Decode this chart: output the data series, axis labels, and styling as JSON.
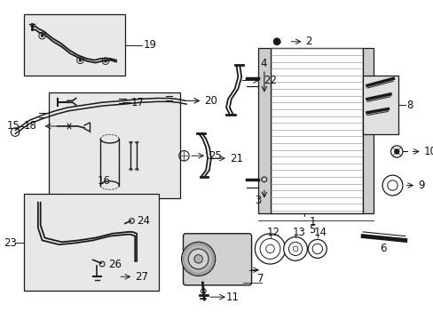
{
  "background_color": "#ffffff",
  "line_color": "#1a1a1a",
  "box_fill": "#e8e8e8",
  "label_fontsize": 8.5
}
